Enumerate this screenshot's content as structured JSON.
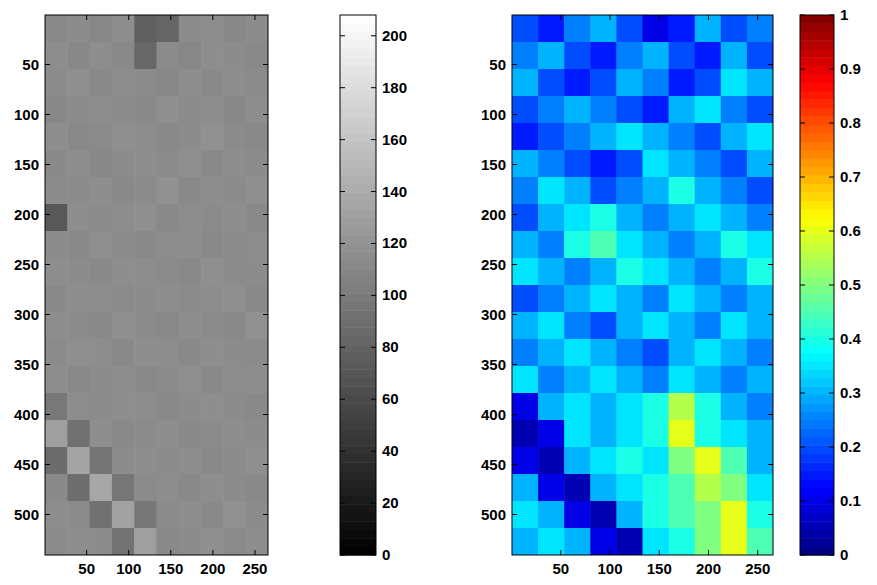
{
  "chart_data": [
    {
      "type": "heatmap",
      "color": "gray",
      "xlim": [
        0.5,
        265.5
      ],
      "ylim": [
        0.5,
        540.5
      ],
      "xticks": [
        50,
        100,
        150,
        200,
        250
      ],
      "yticks": [
        50,
        100,
        150,
        200,
        250,
        300,
        350,
        400,
        450,
        500
      ],
      "cells": [
        [
          112,
          114,
          110,
          116,
          78,
          82,
          113,
          115,
          111,
          114
        ],
        [
          115,
          111,
          116,
          112,
          84,
          113,
          110,
          116,
          114,
          112
        ],
        [
          113,
          117,
          112,
          115,
          114,
          111,
          116,
          112,
          115,
          113
        ],
        [
          111,
          114,
          116,
          113,
          112,
          117,
          113,
          115,
          111,
          116
        ],
        [
          116,
          112,
          113,
          117,
          115,
          112,
          114,
          118,
          113,
          112
        ],
        [
          112,
          115,
          111,
          114,
          116,
          113,
          117,
          112,
          116,
          114
        ],
        [
          114,
          113,
          116,
          112,
          113,
          118,
          112,
          115,
          113,
          117
        ],
        [
          72,
          116,
          113,
          115,
          117,
          112,
          115,
          113,
          116,
          112
        ],
        [
          113,
          112,
          117,
          113,
          112,
          115,
          116,
          112,
          114,
          115
        ],
        [
          116,
          114,
          112,
          116,
          115,
          113,
          112,
          117,
          113,
          114
        ],
        [
          112,
          116,
          115,
          113,
          114,
          116,
          113,
          115,
          117,
          112
        ],
        [
          115,
          113,
          112,
          117,
          113,
          112,
          116,
          113,
          112,
          118
        ],
        [
          113,
          117,
          116,
          112,
          116,
          115,
          112,
          116,
          114,
          113
        ],
        [
          116,
          112,
          114,
          115,
          112,
          113,
          117,
          112,
          115,
          116
        ],
        [
          98,
          115,
          113,
          116,
          115,
          112,
          114,
          116,
          113,
          112
        ],
        [
          130,
          92,
          116,
          112,
          113,
          116,
          112,
          113,
          116,
          114
        ],
        [
          88,
          134,
          95,
          114,
          116,
          113,
          115,
          112,
          114,
          117
        ],
        [
          112,
          90,
          136,
          96,
          113,
          115,
          112,
          116,
          113,
          112
        ],
        [
          115,
          113,
          92,
          132,
          97,
          113,
          116,
          112,
          118,
          114
        ],
        [
          113,
          116,
          114,
          94,
          130,
          112,
          114,
          117,
          113,
          116
        ]
      ],
      "colorbar": {
        "range": [
          0,
          208
        ],
        "ticks": [
          0,
          20,
          40,
          60,
          80,
          100,
          120,
          140,
          160,
          180,
          200
        ]
      }
    },
    {
      "type": "heatmap",
      "color": "jet",
      "xlim": [
        0.5,
        265.5
      ],
      "ylim": [
        0.5,
        540.5
      ],
      "xticks": [
        50,
        100,
        150,
        200,
        250
      ],
      "yticks": [
        50,
        100,
        150,
        200,
        250,
        300,
        350,
        400,
        450,
        500
      ],
      "cells": [
        [
          0.2,
          0.15,
          0.25,
          0.3,
          0.2,
          0.1,
          0.15,
          0.3,
          0.2,
          0.25
        ],
        [
          0.25,
          0.3,
          0.2,
          0.15,
          0.25,
          0.3,
          0.2,
          0.15,
          0.3,
          0.2
        ],
        [
          0.3,
          0.2,
          0.15,
          0.2,
          0.3,
          0.25,
          0.15,
          0.2,
          0.35,
          0.3
        ],
        [
          0.2,
          0.25,
          0.3,
          0.25,
          0.2,
          0.15,
          0.3,
          0.35,
          0.25,
          0.2
        ],
        [
          0.15,
          0.2,
          0.25,
          0.3,
          0.35,
          0.3,
          0.25,
          0.2,
          0.3,
          0.35
        ],
        [
          0.3,
          0.25,
          0.2,
          0.15,
          0.2,
          0.35,
          0.3,
          0.25,
          0.2,
          0.3
        ],
        [
          0.25,
          0.35,
          0.3,
          0.2,
          0.25,
          0.3,
          0.4,
          0.3,
          0.25,
          0.2
        ],
        [
          0.2,
          0.3,
          0.35,
          0.4,
          0.3,
          0.25,
          0.3,
          0.35,
          0.3,
          0.25
        ],
        [
          0.3,
          0.25,
          0.4,
          0.45,
          0.35,
          0.3,
          0.25,
          0.3,
          0.4,
          0.35
        ],
        [
          0.35,
          0.3,
          0.25,
          0.3,
          0.4,
          0.35,
          0.3,
          0.25,
          0.3,
          0.4
        ],
        [
          0.2,
          0.25,
          0.3,
          0.35,
          0.3,
          0.25,
          0.35,
          0.3,
          0.25,
          0.3
        ],
        [
          0.3,
          0.35,
          0.25,
          0.2,
          0.3,
          0.35,
          0.3,
          0.25,
          0.35,
          0.3
        ],
        [
          0.25,
          0.3,
          0.35,
          0.3,
          0.25,
          0.2,
          0.3,
          0.35,
          0.3,
          0.25
        ],
        [
          0.35,
          0.25,
          0.3,
          0.35,
          0.3,
          0.25,
          0.35,
          0.3,
          0.25,
          0.3
        ],
        [
          0.1,
          0.3,
          0.35,
          0.3,
          0.35,
          0.4,
          0.55,
          0.4,
          0.3,
          0.25
        ],
        [
          0.05,
          0.1,
          0.35,
          0.3,
          0.35,
          0.4,
          0.6,
          0.4,
          0.35,
          0.3
        ],
        [
          0.1,
          0.05,
          0.3,
          0.35,
          0.4,
          0.35,
          0.5,
          0.6,
          0.45,
          0.3
        ],
        [
          0.3,
          0.1,
          0.05,
          0.3,
          0.35,
          0.4,
          0.45,
          0.55,
          0.5,
          0.35
        ],
        [
          0.35,
          0.3,
          0.1,
          0.05,
          0.3,
          0.4,
          0.45,
          0.5,
          0.6,
          0.4
        ],
        [
          0.3,
          0.35,
          0.3,
          0.1,
          0.05,
          0.35,
          0.4,
          0.5,
          0.6,
          0.45
        ]
      ],
      "colorbar": {
        "range": [
          0,
          1
        ],
        "ticks": [
          0,
          0.1,
          0.2,
          0.3,
          0.4,
          0.5,
          0.6,
          0.7,
          0.8,
          0.9,
          1
        ]
      }
    }
  ]
}
